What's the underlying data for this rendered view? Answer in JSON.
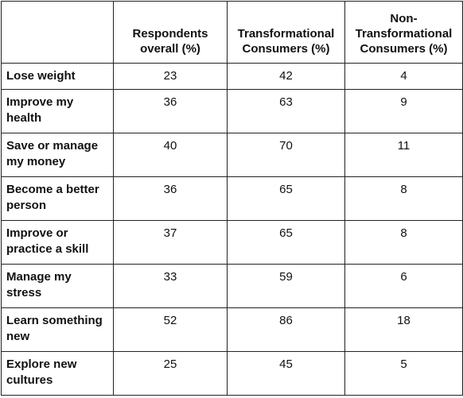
{
  "chart_data": {
    "type": "table",
    "columns": [
      "",
      "Respondents overall (%)",
      "Transformational Consumers (%)",
      "Non-Transformational Consumers (%)"
    ],
    "rows": [
      {
        "label": "Lose weight",
        "values": [
          23,
          42,
          4
        ]
      },
      {
        "label": "Improve my health",
        "values": [
          36,
          63,
          9
        ]
      },
      {
        "label": "Save or manage my money",
        "values": [
          40,
          70,
          11
        ]
      },
      {
        "label": "Become a better person",
        "values": [
          36,
          65,
          8
        ]
      },
      {
        "label": "Improve or practice a skill",
        "values": [
          37,
          65,
          8
        ]
      },
      {
        "label": "Manage my stress",
        "values": [
          33,
          59,
          6
        ]
      },
      {
        "label": "Learn something new",
        "values": [
          52,
          86,
          18
        ]
      },
      {
        "label": "Explore new cultures",
        "values": [
          25,
          45,
          5
        ]
      }
    ]
  }
}
